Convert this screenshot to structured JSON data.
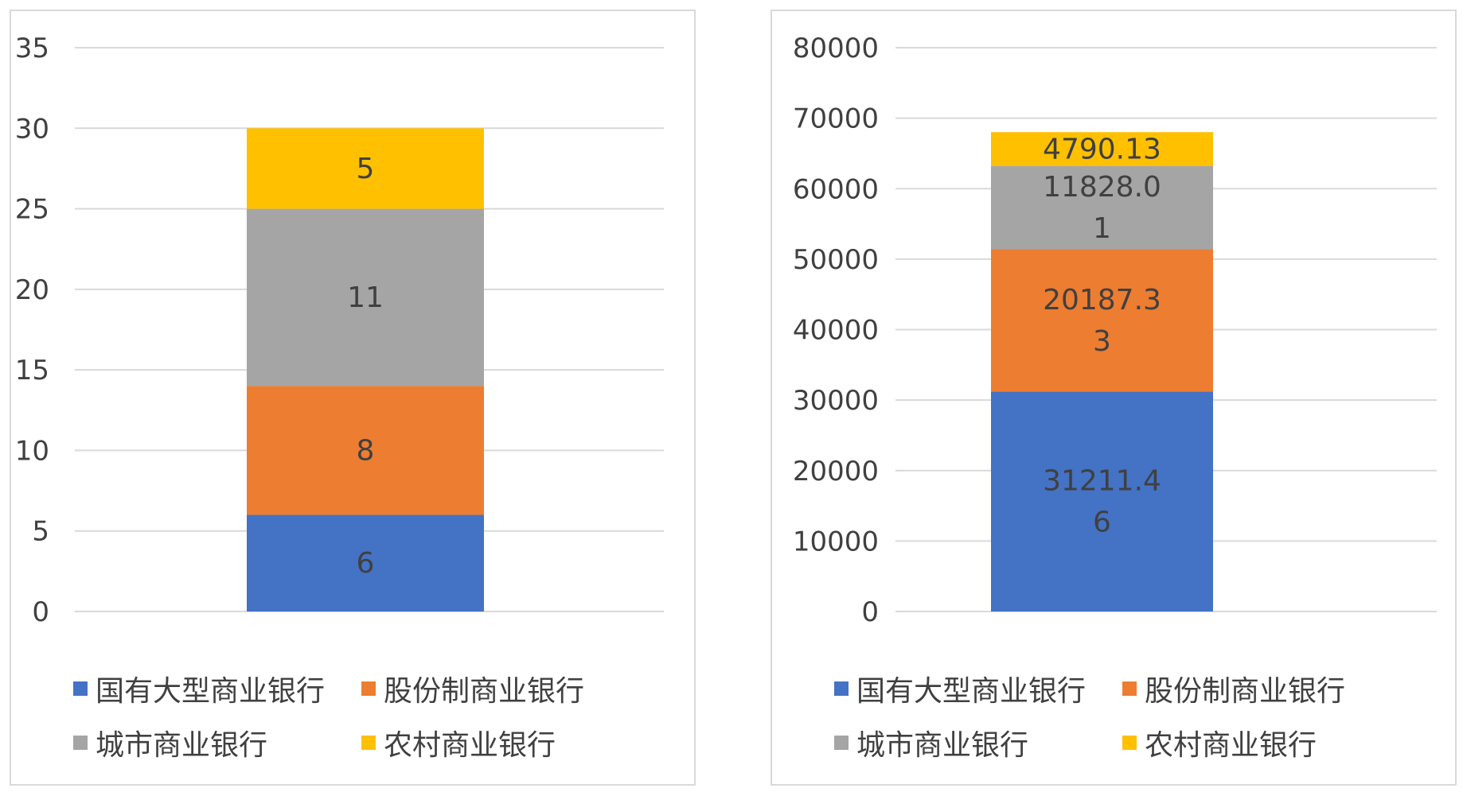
{
  "chart_data": [
    {
      "type": "bar",
      "stacked": true,
      "categories": [
        ""
      ],
      "series": [
        {
          "name": "国有大型商业银行",
          "values": [
            6
          ],
          "labels": [
            "6"
          ]
        },
        {
          "name": "股份制商业银行",
          "values": [
            8
          ],
          "labels": [
            "8"
          ]
        },
        {
          "name": "城市商业银行",
          "values": [
            11
          ],
          "labels": [
            "11"
          ]
        },
        {
          "name": "农村商业银行",
          "values": [
            5
          ],
          "labels": [
            "5"
          ]
        }
      ],
      "ylim": [
        0,
        35
      ],
      "yticks": [
        "0",
        "5",
        "10",
        "15",
        "20",
        "25",
        "30",
        "35"
      ],
      "grid": true,
      "legend_position": "bottom"
    },
    {
      "type": "bar",
      "stacked": true,
      "categories": [
        ""
      ],
      "series": [
        {
          "name": "国有大型商业银行",
          "values": [
            31211.46
          ],
          "labels": [
            "31211.4",
            "6"
          ]
        },
        {
          "name": "股份制商业银行",
          "values": [
            20187.33
          ],
          "labels": [
            "20187.3",
            "3"
          ]
        },
        {
          "name": "城市商业银行",
          "values": [
            11828.01
          ],
          "labels": [
            "11828.0",
            "1"
          ]
        },
        {
          "name": "农村商业银行",
          "values": [
            4790.13
          ],
          "labels": [
            "4790.13"
          ]
        }
      ],
      "ylim": [
        0,
        80000
      ],
      "yticks": [
        "0",
        "10000",
        "20000",
        "30000",
        "40000",
        "50000",
        "60000",
        "70000",
        "80000"
      ],
      "grid": true,
      "legend_position": "bottom"
    }
  ],
  "colors": {
    "series": [
      "#4472C4",
      "#ED7D31",
      "#A5A5A5",
      "#FFC000"
    ],
    "grid": "#d9d9d9",
    "text": "#404040",
    "border": "#d9d9d9"
  }
}
